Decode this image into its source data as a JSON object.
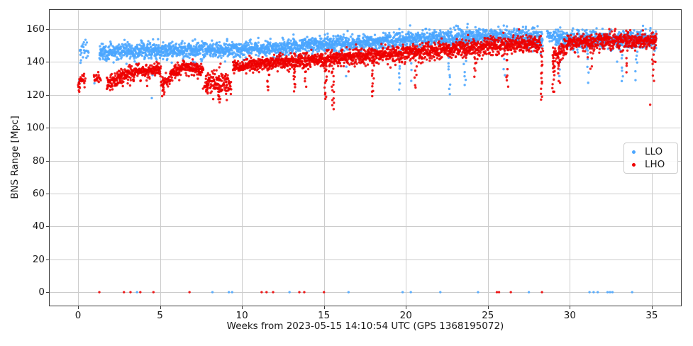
{
  "chart_data": {
    "type": "scatter",
    "title": "",
    "xlabel": "Weeks from 2023-05-15 14:10:54 UTC (GPS 1368195072)",
    "ylabel": "BNS Range [Mpc]",
    "xlim": [
      -1.774,
      36.82
    ],
    "ylim": [
      -8.6,
      172.05
    ],
    "xticks": [
      0,
      5,
      10,
      15,
      20,
      25,
      30,
      35
    ],
    "yticks": [
      0,
      20,
      40,
      60,
      80,
      100,
      120,
      140,
      160
    ],
    "grid": true,
    "grid_color": "#cccccc",
    "spine_color": "#3b3b3b",
    "tick_color": "#3b3b3b",
    "background_color": "#ffffff",
    "marker_radius_px": 1.7,
    "marker_alpha": 0.88,
    "render_seed": 1368195072,
    "legend": {
      "position": "center-right"
    },
    "series": [
      {
        "name": "LLO",
        "color": "#4ba6ff",
        "trend_segments": [
          [
            0.1,
            0.65,
            147,
            148,
            2.5,
            42
          ],
          [
            1.3,
            5,
            146,
            147,
            2.3,
            95
          ],
          [
            5,
            10,
            147,
            147.5,
            2.3,
            95
          ],
          [
            10,
            13,
            147.5,
            149,
            2.3,
            95
          ],
          [
            13,
            15,
            149,
            151,
            2.3,
            95
          ],
          [
            15,
            18,
            151,
            152,
            2.3,
            95
          ],
          [
            18,
            20,
            152,
            154,
            2.3,
            95
          ],
          [
            20,
            23,
            154,
            155,
            2.4,
            95
          ],
          [
            23,
            26,
            155,
            155.5,
            2.5,
            95
          ],
          [
            26,
            28.35,
            155.5,
            154.5,
            2.6,
            95
          ],
          [
            28.6,
            29.1,
            157,
            156,
            1.8,
            60
          ],
          [
            29.1,
            31,
            154.5,
            154,
            2.6,
            95
          ],
          [
            31,
            35.28,
            154,
            153.5,
            2.7,
            95
          ]
        ],
        "dip_streaks": [
          [
            4.52,
            118,
            132,
            2
          ],
          [
            16.4,
            132,
            146,
            4
          ],
          [
            19.62,
            124,
            147,
            9
          ],
          [
            20.3,
            129,
            149,
            5
          ],
          [
            22.65,
            121,
            149,
            11
          ],
          [
            23.6,
            125,
            150,
            9
          ],
          [
            26.0,
            131,
            151,
            5
          ],
          [
            29.4,
            132,
            150,
            5
          ],
          [
            31.1,
            129,
            150,
            6
          ],
          [
            33.2,
            127,
            149,
            7
          ],
          [
            34.05,
            130,
            149,
            6
          ]
        ],
        "outliers": [
          [
            0.05,
            127
          ],
          [
            0.08,
            128.5
          ],
          [
            0.15,
            139.5
          ],
          [
            0.18,
            141
          ],
          [
            1.0,
            127
          ]
        ],
        "zero_points": [
          3.6,
          8.2,
          9.2,
          9.4,
          12.9,
          16.5,
          19.8,
          20.3,
          22.1,
          24.4,
          27.5,
          31.2,
          31.45,
          31.7,
          32.3,
          32.45,
          32.6,
          33.8
        ]
      },
      {
        "name": "LHO",
        "color": "#ee0000",
        "trend_segments": [
          [
            0.0,
            0.45,
            129.5,
            129.5,
            1.6,
            55
          ],
          [
            0.95,
            1.4,
            129.5,
            130,
            1.5,
            45
          ],
          [
            1.75,
            3.5,
            127.5,
            134,
            2.4,
            95
          ],
          [
            3.5,
            5.05,
            134.5,
            135.5,
            1.8,
            95
          ],
          [
            5.05,
            5.6,
            126.5,
            128,
            2.3,
            60
          ],
          [
            5.6,
            6.5,
            131.5,
            137.5,
            1.9,
            95
          ],
          [
            6.5,
            7.65,
            137.5,
            135,
            1.9,
            95
          ],
          [
            7.75,
            8.9,
            133,
            133,
            1.5,
            12
          ],
          [
            7.7,
            9.35,
            126.5,
            127.5,
            2.8,
            75
          ],
          [
            9.45,
            11,
            137,
            139,
            1.9,
            95
          ],
          [
            11,
            13,
            139,
            140.5,
            2.0,
            95
          ],
          [
            13,
            15,
            140.5,
            141.5,
            2.1,
            95
          ],
          [
            15,
            17,
            141.5,
            143.5,
            2.2,
            95
          ],
          [
            17,
            20,
            143.5,
            145.5,
            2.3,
            95
          ],
          [
            20,
            22,
            145.5,
            147,
            2.4,
            95
          ],
          [
            22,
            25,
            147.5,
            149.5,
            2.4,
            95
          ],
          [
            25,
            28.25,
            149.5,
            151.5,
            2.5,
            95
          ],
          [
            28.95,
            29.8,
            141,
            150,
            3.2,
            80
          ],
          [
            29.8,
            32,
            151.5,
            152.5,
            2.4,
            95
          ],
          [
            32,
            35.28,
            152.5,
            153,
            2.7,
            95
          ]
        ],
        "dip_streaks": [
          [
            0.05,
            121,
            127,
            4
          ],
          [
            5.2,
            121,
            128,
            10
          ],
          [
            7.9,
            120,
            128,
            7
          ],
          [
            8.62,
            116,
            125,
            9
          ],
          [
            9.05,
            121,
            128,
            5
          ],
          [
            11.6,
            123,
            136,
            9
          ],
          [
            13.2,
            122,
            136,
            9
          ],
          [
            13.9,
            125,
            137,
            6
          ],
          [
            15.1,
            117,
            138,
            12
          ],
          [
            15.55,
            112,
            139,
            16
          ],
          [
            18.0,
            120,
            141,
            12
          ],
          [
            20.6,
            124,
            143,
            8
          ],
          [
            24.2,
            131,
            146,
            6
          ],
          [
            26.2,
            125,
            147,
            9
          ],
          [
            28.3,
            117,
            149,
            16
          ],
          [
            29.0,
            121,
            148,
            14
          ],
          [
            29.35,
            127,
            145,
            8
          ],
          [
            31.3,
            135,
            149,
            5
          ],
          [
            33.5,
            133,
            150,
            6
          ],
          [
            35.12,
            129,
            149,
            8
          ]
        ],
        "outliers": [
          [
            34.9,
            114
          ],
          [
            35.22,
            140
          ]
        ],
        "zero_points": [
          1.3,
          2.8,
          3.2,
          3.8,
          4.6,
          6.8,
          11.2,
          11.5,
          11.9,
          13.5,
          13.8,
          15.0,
          25.55,
          25.68,
          26.4,
          28.3
        ]
      }
    ]
  }
}
